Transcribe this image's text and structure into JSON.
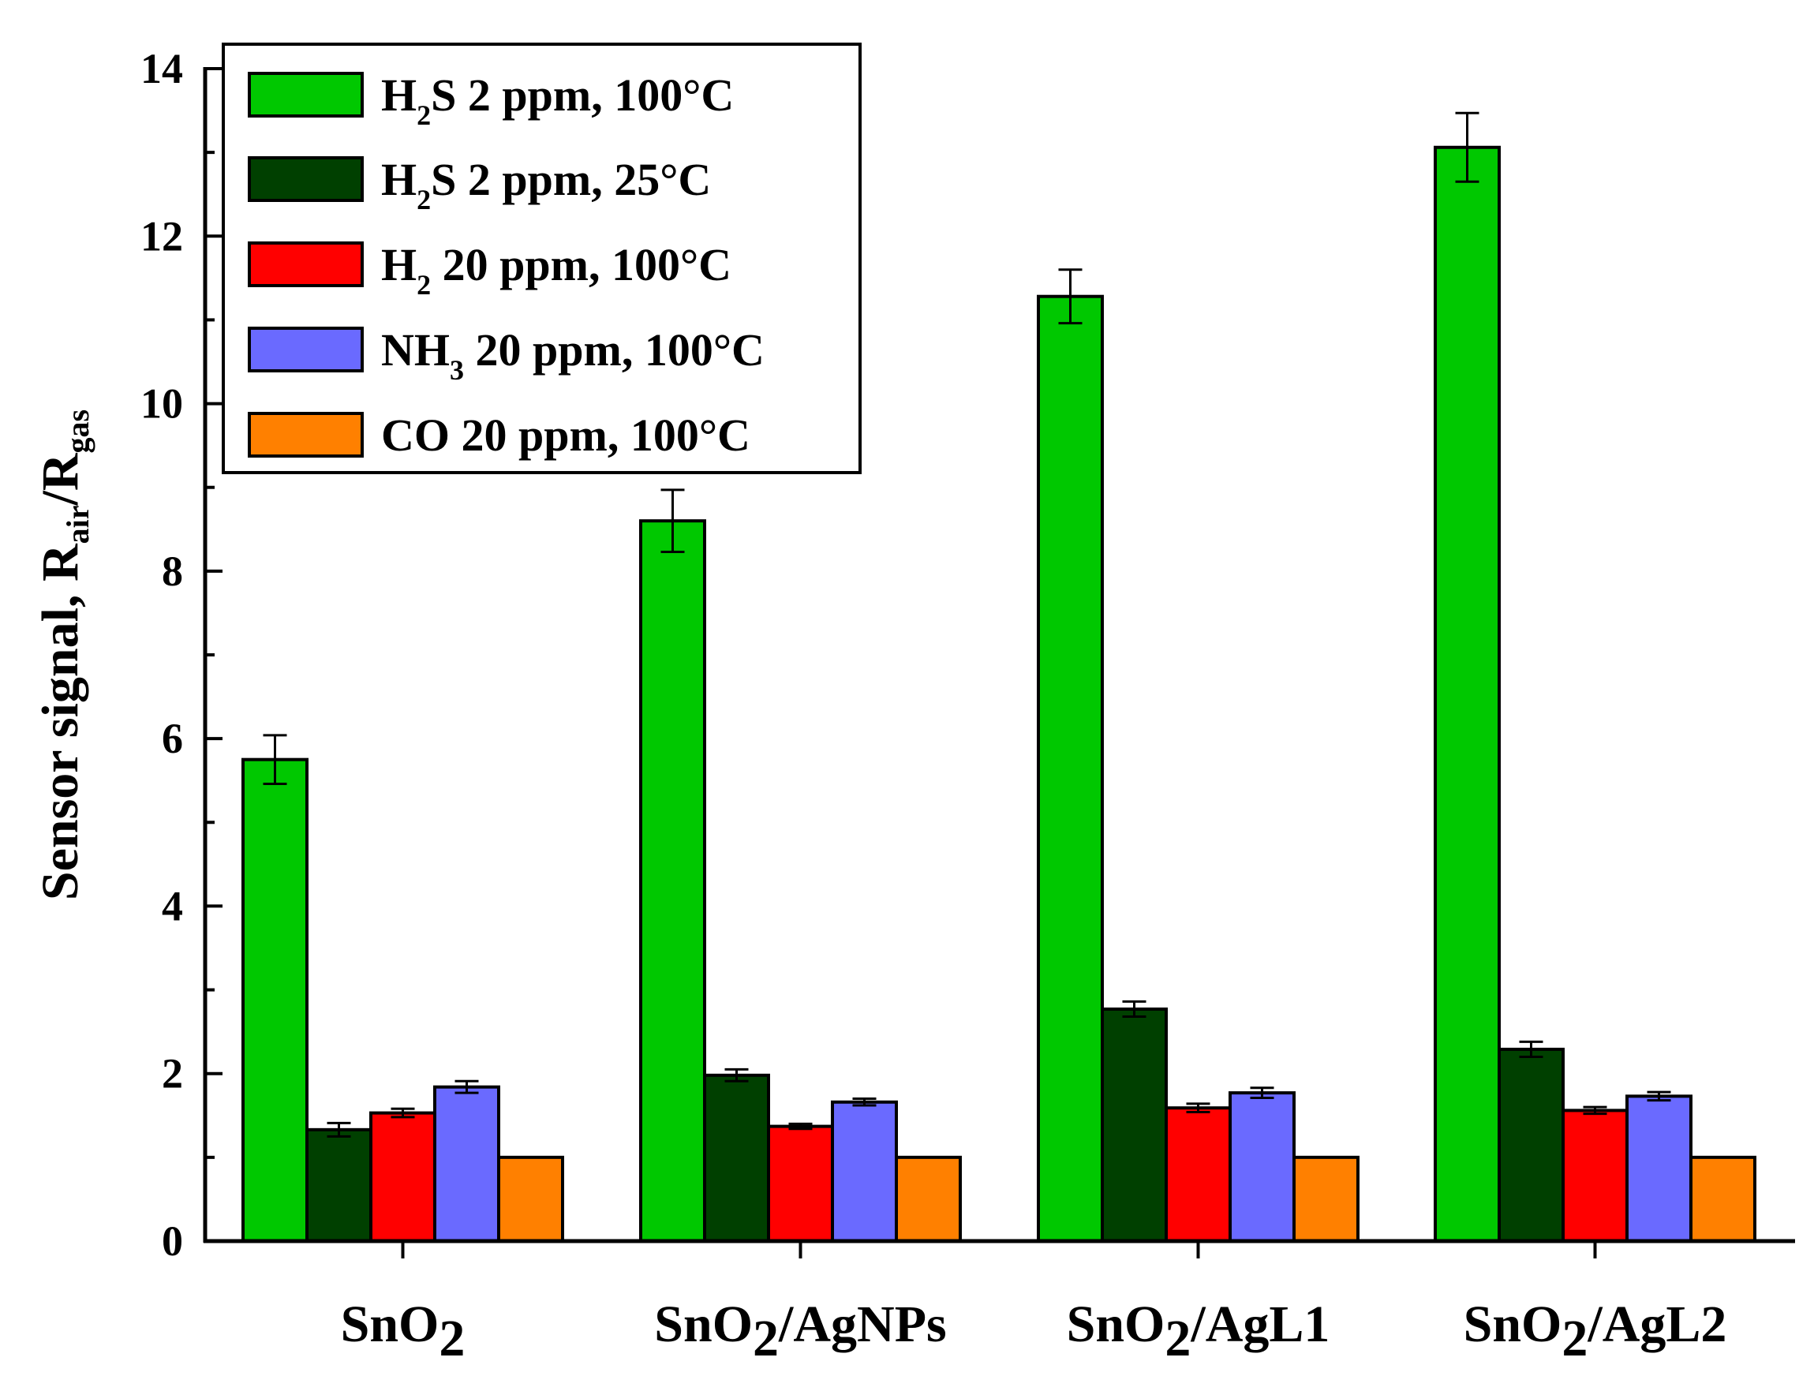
{
  "chart_data": {
    "type": "bar",
    "title": "",
    "xlabel": "",
    "ylabel": {
      "main": "Sensor signal, R",
      "sub1": "air",
      "sep": "/R",
      "sub2": "gas"
    },
    "ylim": [
      0,
      14
    ],
    "yticks": [
      "0",
      "2",
      "4",
      "6",
      "8",
      "10",
      "12",
      "14"
    ],
    "categories": [
      {
        "pre": "SnO",
        "sub": "2",
        "post": ""
      },
      {
        "pre": "SnO",
        "sub": "2",
        "post": "/AgNPs"
      },
      {
        "pre": "SnO",
        "sub": "2",
        "post": "/AgL1"
      },
      {
        "pre": "SnO",
        "sub": "2",
        "post": "/AgL2"
      }
    ],
    "series": [
      {
        "name": "H2S 2 ppm, 100°C",
        "label": {
          "pre": "H",
          "sub": "2",
          "post": "S 2 ppm, 100°C"
        },
        "color": "#00c800",
        "values": [
          5.75,
          8.6,
          11.28,
          13.06
        ],
        "errors": [
          0.29,
          0.37,
          0.32,
          0.41
        ]
      },
      {
        "name": "H2S 2 ppm, 25°C",
        "label": {
          "pre": "H",
          "sub": "2",
          "post": "S 2 ppm, 25°C"
        },
        "color": "#004000",
        "values": [
          1.33,
          1.98,
          2.77,
          2.29
        ],
        "errors": [
          0.08,
          0.07,
          0.09,
          0.09
        ]
      },
      {
        "name": "H2 20 ppm, 100°C",
        "label": {
          "pre": "H",
          "sub": "2",
          "post": " 20 ppm, 100°C"
        },
        "color": "#ff0000",
        "values": [
          1.53,
          1.37,
          1.59,
          1.56
        ],
        "errors": [
          0.05,
          0.03,
          0.05,
          0.04
        ]
      },
      {
        "name": "NH3 20 ppm, 100°C",
        "label": {
          "pre": "NH",
          "sub": "3",
          "post": " 20 ppm, 100°C"
        },
        "color": "#6a6aff",
        "values": [
          1.84,
          1.66,
          1.77,
          1.73
        ],
        "errors": [
          0.07,
          0.04,
          0.06,
          0.05
        ]
      },
      {
        "name": "CO 20 ppm, 100°C",
        "label": {
          "pre": "CO 20 ppm, 100°C",
          "sub": "",
          "post": ""
        },
        "color": "#ff8000",
        "values": [
          1.0,
          1.0,
          1.0,
          1.0
        ],
        "errors": [
          0,
          0,
          0,
          0
        ]
      }
    ],
    "legend_position": "top-left",
    "grid": false
  }
}
